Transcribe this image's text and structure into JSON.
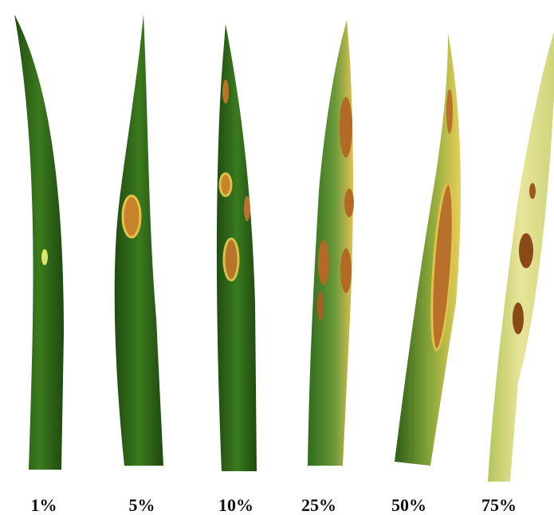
{
  "labels": [
    "1%",
    "5%",
    "10%",
    "25%",
    "50%",
    "75%"
  ]
}
